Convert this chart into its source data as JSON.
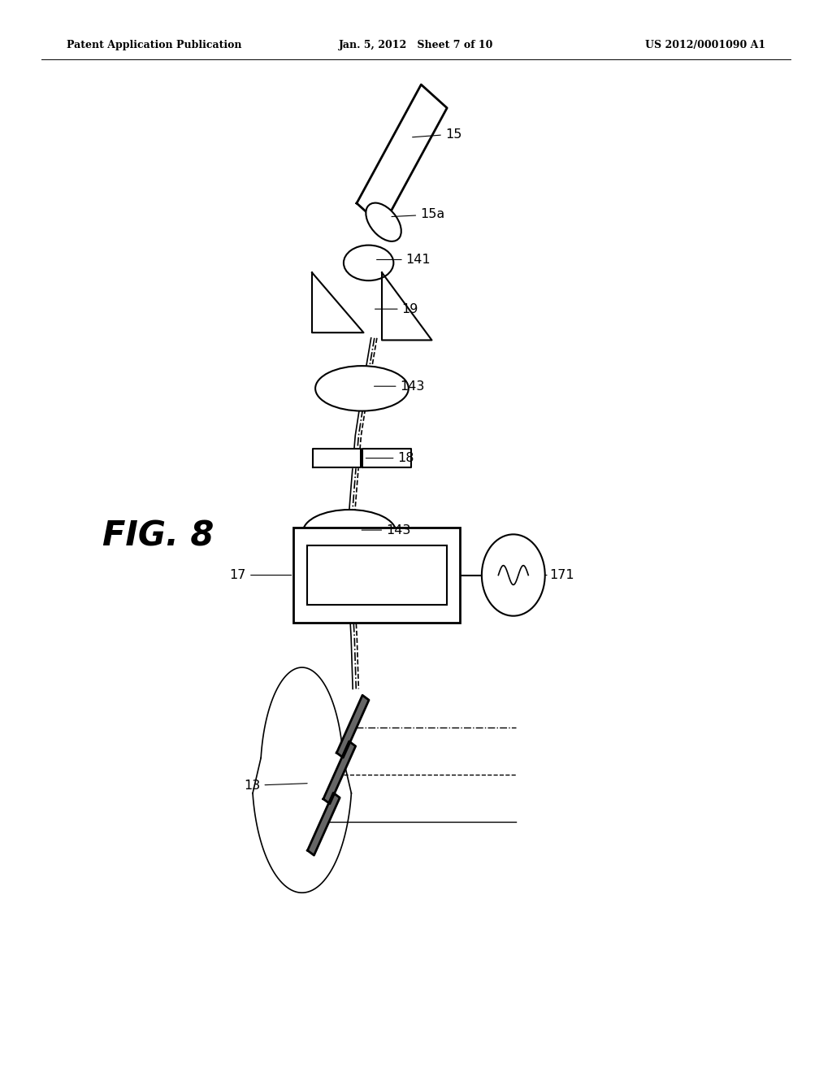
{
  "background_color": "#ffffff",
  "line_color": "#000000",
  "header_left": "Patent Application Publication",
  "header_center": "Jan. 5, 2012   Sheet 7 of 10",
  "header_right": "US 2012/0001090 A1",
  "fig_label": "FIG. 8"
}
